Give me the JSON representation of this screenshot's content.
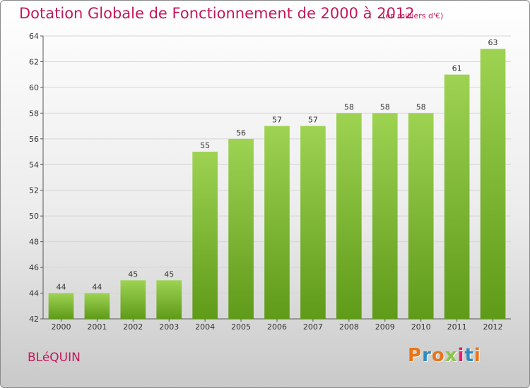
{
  "header": {
    "title": "Dotation Globale de Fonctionnement de 2000 à 2012",
    "unit": "(en milliers d'€)"
  },
  "footer": {
    "commune": "BLéQUIN",
    "logo_letters": [
      "P",
      "r",
      "o",
      "x",
      "i",
      "t",
      "i"
    ],
    "logo_colors": [
      "#e8741a",
      "#2e8bc0",
      "#e8741a",
      "#8bc34a",
      "#e91e63",
      "#2e8bc0",
      "#e8741a"
    ]
  },
  "chart_data": {
    "type": "bar",
    "title": "Dotation Globale de Fonctionnement de 2000 à 2012",
    "xlabel": "",
    "ylabel": "",
    "categories": [
      "2000",
      "2001",
      "2002",
      "2003",
      "2004",
      "2005",
      "2006",
      "2007",
      "2008",
      "2009",
      "2010",
      "2011",
      "2012"
    ],
    "values": [
      44,
      44,
      45,
      45,
      55,
      56,
      57,
      57,
      58,
      58,
      58,
      61,
      63
    ],
    "ylim": [
      42,
      64
    ],
    "yticks": [
      42,
      44,
      46,
      48,
      50,
      52,
      54,
      56,
      58,
      60,
      62,
      64
    ],
    "grid": true,
    "bar_color_top": "#9ed352",
    "bar_color_bottom": "#5f9a19"
  }
}
